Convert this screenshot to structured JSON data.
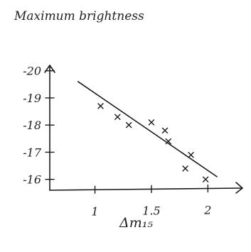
{
  "chart_data": {
    "type": "scatter",
    "ylabel": "Maximum brightness",
    "xlabel": "Δm₁₅",
    "x_ticks": [
      {
        "value": 1,
        "label": "1"
      },
      {
        "value": 1.5,
        "label": "1.5"
      },
      {
        "value": 2,
        "label": "2"
      }
    ],
    "y_ticks": [
      {
        "value": -20,
        "label": "-20"
      },
      {
        "value": -19,
        "label": "-19"
      },
      {
        "value": -18,
        "label": "-18"
      },
      {
        "value": -17,
        "label": "-17"
      },
      {
        "value": -16,
        "label": "-16"
      }
    ],
    "y_inverted": true,
    "xlim": [
      0.6,
      2.3
    ],
    "ylim": [
      -20.2,
      -15.6
    ],
    "grid": false,
    "points": [
      {
        "x": 1.05,
        "y": -18.7
      },
      {
        "x": 1.2,
        "y": -18.3
      },
      {
        "x": 1.3,
        "y": -18.0
      },
      {
        "x": 1.5,
        "y": -18.1
      },
      {
        "x": 1.62,
        "y": -17.8
      },
      {
        "x": 1.65,
        "y": -17.4
      },
      {
        "x": 1.8,
        "y": -16.4
      },
      {
        "x": 1.85,
        "y": -16.9
      },
      {
        "x": 1.98,
        "y": -16.0
      }
    ],
    "trend_line": [
      {
        "x": 0.85,
        "y": -19.6
      },
      {
        "x": 2.08,
        "y": -16.1
      }
    ]
  }
}
